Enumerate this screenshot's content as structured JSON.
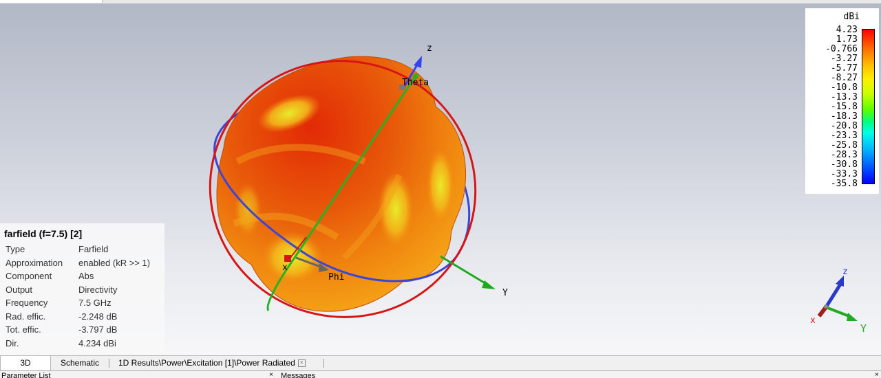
{
  "scene": {
    "axis_labels": {
      "z": "z",
      "y": "Y",
      "x": "x",
      "theta": "Theta",
      "phi": "Phi"
    },
    "triad_labels": {
      "z": "z",
      "y": "Y",
      "x": "x"
    }
  },
  "legend": {
    "unit": "dBi",
    "ticks": [
      "4.23",
      "1.73",
      "-0.766",
      "-3.27",
      "-5.77",
      "-8.27",
      "-10.8",
      "-13.3",
      "-15.8",
      "-18.3",
      "-20.8",
      "-23.3",
      "-25.8",
      "-28.3",
      "-30.8",
      "-33.3",
      "-35.8"
    ]
  },
  "properties": {
    "title": "farfield (f=7.5) [2]",
    "rows": [
      {
        "key": "Type",
        "value": "Farfield"
      },
      {
        "key": "Approximation",
        "value": "enabled (kR >> 1)"
      },
      {
        "key": "Component",
        "value": "Abs"
      },
      {
        "key": "Output",
        "value": "Directivity"
      },
      {
        "key": "Frequency",
        "value": "7.5 GHz"
      },
      {
        "key": "Rad. effic.",
        "value": "-2.248 dB"
      },
      {
        "key": "Tot. effic.",
        "value": "-3.797 dB"
      },
      {
        "key": "Dir.",
        "value": "4.234 dBi"
      }
    ]
  },
  "tabs": [
    {
      "label": "3D"
    },
    {
      "label": "Schematic"
    },
    {
      "label": "1D Results\\Power\\Excitation [1]\\Power Radiated"
    }
  ],
  "bottom_panes": {
    "left_title": "Parameter List",
    "right_title": "Messages",
    "close": "×"
  }
}
